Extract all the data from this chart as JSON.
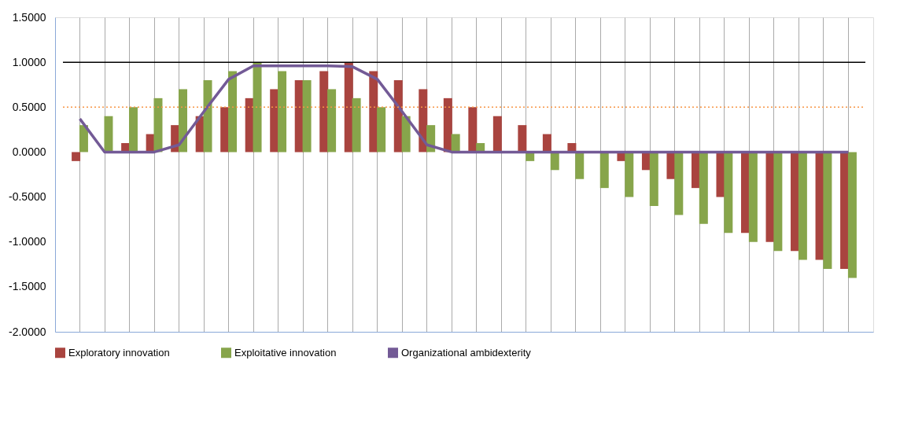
{
  "chart_data": {
    "type": "bar",
    "categories": [
      null,
      null,
      null,
      null,
      null,
      null,
      null,
      null,
      null,
      null,
      null,
      null,
      null,
      null,
      null,
      null,
      null,
      null,
      null,
      null,
      null,
      null,
      null,
      null,
      null,
      null,
      null,
      null,
      null,
      null,
      null,
      null
    ],
    "series": [
      {
        "name": "Exploratory innovation",
        "color": "#a9443f",
        "values": [
          -0.1,
          0,
          0.1,
          0.2,
          0.3,
          0.4,
          0.5,
          0.6,
          0.7,
          0.8,
          0.9,
          1.0,
          0.9,
          0.8,
          0.7,
          0.6,
          0.5,
          0.4,
          0.3,
          0.2,
          0.1,
          0,
          -0.1,
          -0.2,
          -0.3,
          -0.4,
          -0.5,
          -0.9,
          -1.0,
          -1.1,
          -1.2,
          -1.3
        ]
      },
      {
        "name": "Exploitative innovation",
        "color": "#87a54b",
        "values": [
          0.3,
          0.4,
          0.5,
          0.6,
          0.7,
          0.8,
          0.9,
          1.0,
          0.9,
          0.8,
          0.7,
          0.6,
          0.5,
          0.4,
          0.3,
          0.2,
          0.1,
          0,
          -0.1,
          -0.2,
          -0.3,
          -0.4,
          -0.5,
          -0.6,
          -0.7,
          -0.8,
          -0.9,
          -1.0,
          -1.1,
          -1.2,
          -1.3,
          -1.4
        ]
      },
      {
        "name": "Organizational ambidexterity",
        "color": "#735a96",
        "type": "line",
        "values": [
          0.37,
          0,
          0,
          0,
          0.08,
          0.45,
          0.81,
          0.96,
          0.96,
          0.96,
          0.96,
          0.95,
          0.81,
          0.45,
          0.08,
          0,
          0,
          0,
          0,
          0,
          0,
          0,
          0,
          0,
          0,
          0,
          0,
          0,
          0,
          0,
          0,
          0
        ]
      }
    ],
    "ylim": [
      -2,
      1.5
    ],
    "yticks": [
      {
        "value": -2,
        "label": "-2.0000"
      },
      {
        "value": -1.5,
        "label": "-1.5000"
      },
      {
        "value": -1,
        "label": "-1.0000"
      },
      {
        "value": -0.5,
        "label": "-0.5000"
      },
      {
        "value": 0,
        "label": "0.0000"
      },
      {
        "value": 0.5,
        "label": "0.5000"
      },
      {
        "value": 1,
        "label": "1.0000"
      },
      {
        "value": 1.5,
        "label": "1.5000"
      }
    ],
    "ref_lines": [
      {
        "axis": "y",
        "value": 1,
        "color": "#000000",
        "line_style": "solid"
      },
      {
        "axis": "y",
        "value": 0.5,
        "color": "#f79646",
        "line_style": "dotted"
      }
    ],
    "grid": "x",
    "legend": "bottom",
    "tick_labels": "y"
  }
}
